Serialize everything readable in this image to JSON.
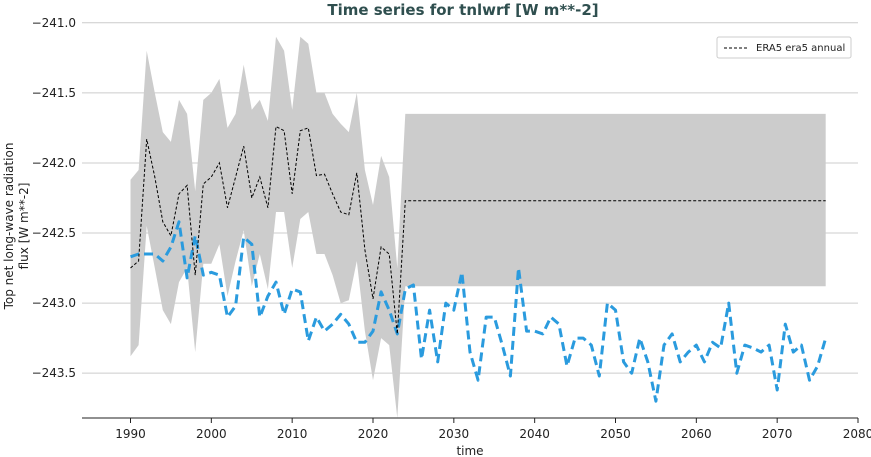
{
  "chart_data": {
    "type": "line",
    "title": "Time series for tnlwrf [W m**-2]",
    "xlabel": "time",
    "ylabel_lines": [
      "Top net long-wave radiation",
      "flux [W m**-2]"
    ],
    "xlim": [
      1984,
      2080
    ],
    "ylim": [
      -243.82,
      -240.98
    ],
    "x_ticks": [
      1990,
      2000,
      2010,
      2020,
      2030,
      2040,
      2050,
      2060,
      2070,
      2080
    ],
    "x_tick_labels": [
      "1990",
      "2000",
      "2010",
      "2020",
      "2030",
      "2040",
      "2050",
      "2060",
      "2070",
      "2080"
    ],
    "y_ticks": [
      -241.0,
      -241.5,
      -242.0,
      -242.5,
      -243.0,
      -243.5
    ],
    "y_tick_labels": [
      "−241.0",
      "−241.5",
      "−242.0",
      "−242.5",
      "−243.0",
      "−243.5"
    ],
    "grid": "horizontal",
    "legend_position": "top-right",
    "legend": [
      {
        "label": "ERA5 era5 annual",
        "style": "dashed",
        "color": "#000000"
      }
    ],
    "colors": {
      "band": "#cccccc",
      "era5": "#000000",
      "model": "#2a9bde",
      "grid": "#cccccc",
      "title": "#2f4f4f"
    },
    "series": [
      {
        "name": "ERA5 era5 annual",
        "style": "dashed-thin",
        "x": [
          1990,
          1991,
          1992,
          1993,
          1994,
          1995,
          1996,
          1997,
          1998,
          1999,
          2000,
          2001,
          2002,
          2003,
          2004,
          2005,
          2006,
          2007,
          2008,
          2009,
          2010,
          2011,
          2012,
          2013,
          2014,
          2015,
          2016,
          2017,
          2018,
          2019,
          2020,
          2021,
          2022,
          2023,
          2024,
          2076
        ],
        "values": [
          -242.75,
          -242.7,
          -241.83,
          -242.1,
          -242.42,
          -242.52,
          -242.22,
          -242.16,
          -242.8,
          -242.15,
          -242.1,
          -242.0,
          -242.32,
          -242.1,
          -241.88,
          -242.25,
          -242.1,
          -242.32,
          -241.74,
          -241.77,
          -242.22,
          -241.77,
          -241.75,
          -242.09,
          -242.08,
          -242.22,
          -242.35,
          -242.37,
          -242.07,
          -242.62,
          -242.97,
          -242.6,
          -242.65,
          -243.22,
          -242.27,
          -242.27
        ]
      },
      {
        "name": "",
        "style": "dashed-thick",
        "x": [
          1990,
          1991,
          1992,
          1993,
          1994,
          1995,
          1996,
          1997,
          1998,
          1999,
          2000,
          2001,
          2002,
          2003,
          2004,
          2005,
          2006,
          2007,
          2008,
          2009,
          2010,
          2011,
          2012,
          2013,
          2014,
          2015,
          2016,
          2017,
          2018,
          2019,
          2020,
          2021,
          2022,
          2023,
          2024,
          2025,
          2026,
          2027,
          2028,
          2029,
          2030,
          2031,
          2032,
          2033,
          2034,
          2035,
          2036,
          2037,
          2038,
          2039,
          2040,
          2041,
          2042,
          2043,
          2044,
          2045,
          2046,
          2047,
          2048,
          2049,
          2050,
          2051,
          2052,
          2053,
          2054,
          2055,
          2056,
          2057,
          2058,
          2059,
          2060,
          2061,
          2062,
          2063,
          2064,
          2065,
          2066,
          2067,
          2068,
          2069,
          2070,
          2071,
          2072,
          2073,
          2074,
          2075,
          2076
        ],
        "values": [
          -242.67,
          -242.65,
          -242.65,
          -242.65,
          -242.7,
          -242.6,
          -242.42,
          -242.82,
          -242.52,
          -242.8,
          -242.78,
          -242.8,
          -243.1,
          -243.02,
          -242.53,
          -242.58,
          -243.1,
          -242.95,
          -242.85,
          -243.08,
          -242.9,
          -242.92,
          -243.27,
          -243.1,
          -243.2,
          -243.15,
          -243.08,
          -243.15,
          -243.28,
          -243.28,
          -243.2,
          -242.92,
          -243.05,
          -243.22,
          -242.9,
          -242.87,
          -243.4,
          -243.05,
          -243.42,
          -243.0,
          -243.05,
          -242.78,
          -243.35,
          -243.55,
          -243.1,
          -243.1,
          -243.3,
          -243.52,
          -242.75,
          -243.2,
          -243.2,
          -243.22,
          -243.1,
          -243.15,
          -243.45,
          -243.25,
          -243.25,
          -243.3,
          -243.52,
          -243.0,
          -243.05,
          -243.42,
          -243.5,
          -243.25,
          -243.42,
          -243.7,
          -243.3,
          -243.22,
          -243.42,
          -243.35,
          -243.3,
          -243.42,
          -243.28,
          -243.32,
          -243.0,
          -243.5,
          -243.3,
          -243.32,
          -243.35,
          -243.3,
          -243.62,
          -243.15,
          -243.35,
          -243.3,
          -243.55,
          -243.45,
          -243.25
        ]
      }
    ],
    "band": {
      "x": [
        1990,
        1991,
        1992,
        1993,
        1994,
        1995,
        1996,
        1997,
        1998,
        1999,
        2000,
        2001,
        2002,
        2003,
        2004,
        2005,
        2006,
        2007,
        2008,
        2009,
        2010,
        2011,
        2012,
        2013,
        2014,
        2015,
        2016,
        2017,
        2018,
        2019,
        2020,
        2021,
        2022,
        2023,
        2024,
        2076
      ],
      "upper": [
        -242.12,
        -242.05,
        -241.2,
        -241.5,
        -241.78,
        -241.85,
        -241.55,
        -241.65,
        -242.2,
        -241.55,
        -241.5,
        -241.4,
        -241.75,
        -241.65,
        -241.3,
        -241.62,
        -241.55,
        -241.7,
        -241.1,
        -241.2,
        -241.62,
        -241.1,
        -241.15,
        -241.5,
        -241.5,
        -241.65,
        -241.72,
        -241.78,
        -241.5,
        -242.05,
        -242.3,
        -241.95,
        -242.1,
        -242.75,
        -241.65,
        -241.65
      ],
      "lower": [
        -243.38,
        -243.3,
        -242.45,
        -242.75,
        -243.05,
        -243.15,
        -242.85,
        -242.75,
        -243.35,
        -242.72,
        -242.72,
        -242.58,
        -242.95,
        -242.7,
        -242.48,
        -242.88,
        -242.65,
        -242.9,
        -242.35,
        -242.35,
        -242.75,
        -242.4,
        -242.35,
        -242.65,
        -242.65,
        -242.8,
        -243.0,
        -242.98,
        -242.7,
        -243.2,
        -243.55,
        -243.25,
        -243.3,
        -243.82,
        -242.88,
        -242.88
      ]
    }
  }
}
